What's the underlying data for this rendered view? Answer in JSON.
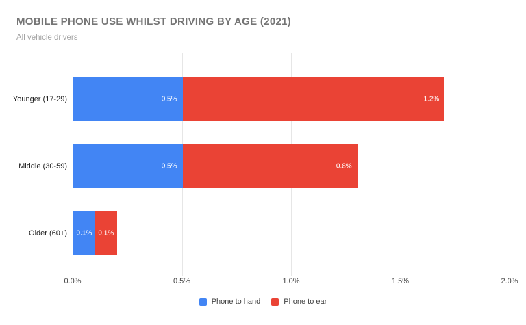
{
  "chart_data": {
    "type": "bar",
    "orientation": "horizontal",
    "stacked": true,
    "title": "MOBILE PHONE USE WHILST DRIVING BY AGE (2021)",
    "subtitle": "All vehicle drivers",
    "categories": [
      "Younger (17-29)",
      "Middle (30-59)",
      "Older (60+)"
    ],
    "series": [
      {
        "name": "Phone to hand",
        "color": "#4285f4",
        "values": [
          0.5,
          0.5,
          0.1
        ],
        "value_labels": [
          "0.5%",
          "0.5%",
          "0.1%"
        ]
      },
      {
        "name": "Phone to ear",
        "color": "#ea4335",
        "values": [
          1.2,
          0.8,
          0.1
        ],
        "value_labels": [
          "1.2%",
          "0.8%",
          "0.1%"
        ]
      }
    ],
    "x_axis": {
      "min": 0,
      "max": 2,
      "ticks": [
        {
          "value": 0,
          "label": "0.0%"
        },
        {
          "value": 0.5,
          "label": "0.5%"
        },
        {
          "value": 1,
          "label": "1.0%"
        },
        {
          "value": 1.5,
          "label": "1.5%"
        },
        {
          "value": 2,
          "label": "2.0%"
        }
      ]
    },
    "grid": "vertical",
    "legend_position": "bottom",
    "value_labels_inside_bars": true
  },
  "style_colors": {
    "series_blue": "#4285f4",
    "series_red": "#ea4335",
    "title_text": "#757575",
    "subtitle_text": "#a3a3a3",
    "axis_line": "#333333",
    "gridline": "#e6e6e6",
    "tick_label_text": "#444444",
    "category_label_text": "#222222",
    "legend_text": "#424242",
    "bar_value_text": "#ffffff",
    "background": "#ffffff"
  }
}
